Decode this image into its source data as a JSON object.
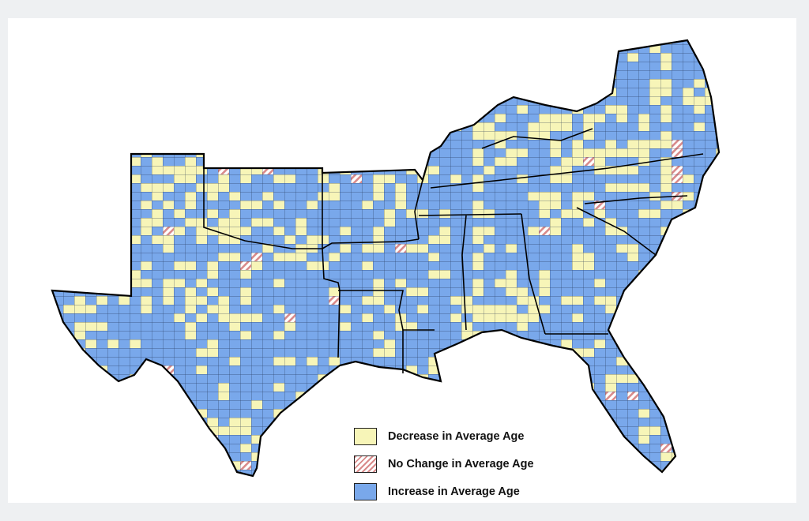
{
  "colors": {
    "decrease": "#f7f5b8",
    "increase": "#79a8eb",
    "no_change_hatch": "#d98a8a",
    "no_change_bg": "#ffffff",
    "border": "#000000",
    "county_line": "#1b2a4a"
  },
  "legend": {
    "items": [
      {
        "key": "decrease",
        "label": "Decrease in Average Age"
      },
      {
        "key": "no_change",
        "label": "No Change in Average Age"
      },
      {
        "key": "increase",
        "label": "Increase in Average Age"
      }
    ]
  }
}
